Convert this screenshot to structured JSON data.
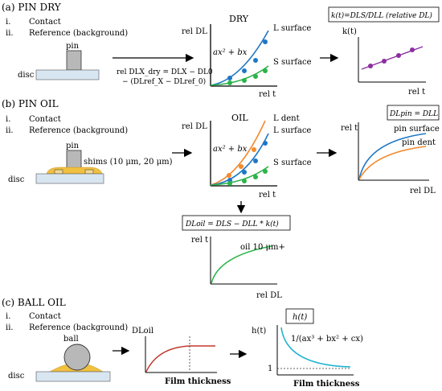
{
  "sections": [
    {
      "id": "a",
      "title": "(a) PIN DRY",
      "items": [
        {
          "num": "i.",
          "text": "Contact"
        },
        {
          "num": "ii.",
          "text": "Reference (background)"
        }
      ]
    },
    {
      "id": "b",
      "title": "(b) PIN OIL",
      "items": [
        {
          "num": "i.",
          "text": "Contact"
        },
        {
          "num": "ii.",
          "text": "Reference (background)"
        }
      ]
    },
    {
      "id": "c",
      "title": "(c) BALL OIL",
      "items": [
        {
          "num": "i.",
          "text": "Contact"
        },
        {
          "num": "ii.",
          "text": "Reference (background)"
        }
      ]
    }
  ],
  "labels": {
    "pin": "pin",
    "disc": "disc",
    "ball": "ball",
    "shims": "shims (10 μm, 20 μm)"
  },
  "formulas": {
    "rel_dry_line1": "rel DLX_dry = DLX − DL0",
    "rel_dry_line2": "− (DLref_X − DLref_0)",
    "quadratic": "ax² + bx",
    "k_box": "k(t)=DLS/DLL (relative DL)",
    "dlpin_box": "DLpin = DLL",
    "dloil_box": "DLoil = DLS − DLL * k(t)",
    "h_box": "h(t)",
    "h_fit": "1/(ax³ + bx² + cx)"
  },
  "plots": {
    "dry": {
      "title": "DRY",
      "ylabel": "rel DL",
      "xlabel": "rel t",
      "series": [
        {
          "name": "L surface",
          "color": "#1f77c4",
          "values": [
            [
              0,
              0
            ],
            [
              1,
              0.1
            ],
            [
              2,
              0.27
            ],
            [
              3,
              0.55
            ],
            [
              4,
              0.95
            ]
          ]
        },
        {
          "name": "S surface",
          "color": "#2db34a",
          "values": [
            [
              0,
              0
            ],
            [
              1,
              0.05
            ],
            [
              2,
              0.12
            ],
            [
              3,
              0.22
            ],
            [
              4,
              0.36
            ]
          ]
        }
      ]
    },
    "k": {
      "ylabel": "k(t)",
      "xlabel": "rel t",
      "color": "#8b2fa0",
      "values": [
        [
          1,
          0.35
        ],
        [
          2,
          0.45
        ],
        [
          3,
          0.55
        ],
        [
          4,
          0.65
        ]
      ]
    },
    "oil": {
      "title": "OIL",
      "ylabel": "rel DL",
      "xlabel": "rel t",
      "series": [
        {
          "name": "L dent",
          "color": "#f28a2e"
        },
        {
          "name": "L surface",
          "color": "#1f77c4"
        },
        {
          "name": "S surface",
          "color": "#2db34a"
        }
      ]
    },
    "pin_oil": {
      "ylabel": "rel t",
      "xlabel": "rel DL",
      "series": [
        {
          "name": "pin surface",
          "color": "#1f77c4"
        },
        {
          "name": "pin dent",
          "color": "#f28a2e"
        }
      ]
    },
    "oil_result": {
      "ylabel": "rel t",
      "xlabel": "rel DL",
      "series": [
        {
          "name": "oil 10 μm+",
          "color": "#2db34a"
        }
      ]
    },
    "ball_dl": {
      "ylabel": "DLoil",
      "xlabel": "Film thickness",
      "color": "#c0392b"
    },
    "ball_h": {
      "ylabel": "h(t)",
      "xlabel": "Film thickness",
      "tick": "1",
      "color": "#1fb3d1"
    }
  }
}
